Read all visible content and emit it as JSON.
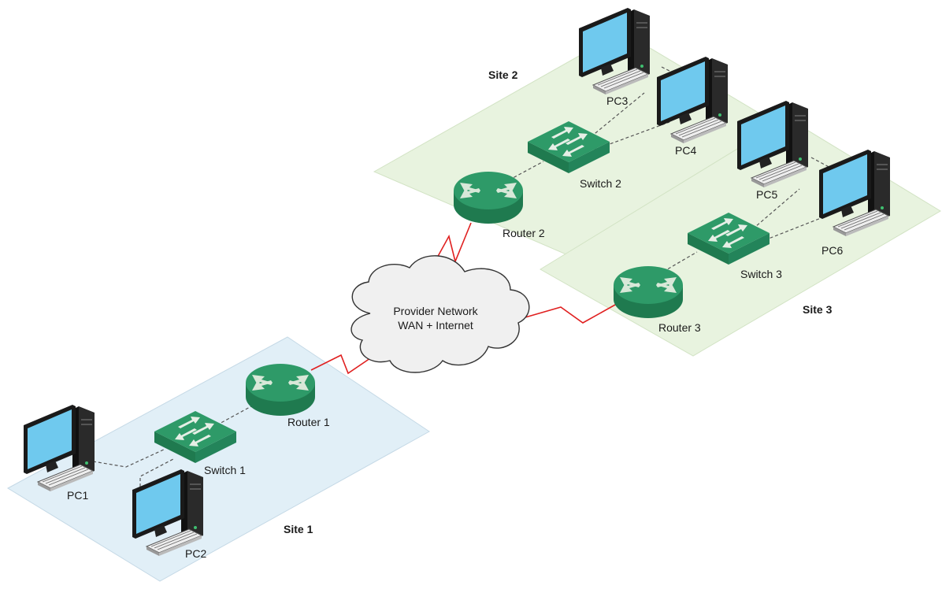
{
  "sites": [
    {
      "id": "site1",
      "label": "Site 1",
      "color": "#e1eff7"
    },
    {
      "id": "site2",
      "label": "Site 2",
      "color": "#e8f3df"
    },
    {
      "id": "site3",
      "label": "Site 3",
      "color": "#e8f3df"
    }
  ],
  "cloud": {
    "line1": "Provider Network",
    "line2": "WAN + Internet",
    "color": "#f0f0f0"
  },
  "routers": [
    {
      "id": "router1",
      "label": "Router 1"
    },
    {
      "id": "router2",
      "label": "Router 2"
    },
    {
      "id": "router3",
      "label": "Router 3"
    }
  ],
  "switches": [
    {
      "id": "switch1",
      "label": "Switch 1"
    },
    {
      "id": "switch2",
      "label": "Switch 2"
    },
    {
      "id": "switch3",
      "label": "Switch 3"
    }
  ],
  "pcs": [
    {
      "id": "pc1",
      "label": "PC1"
    },
    {
      "id": "pc2",
      "label": "PC2"
    },
    {
      "id": "pc3",
      "label": "PC3"
    },
    {
      "id": "pc4",
      "label": "PC4"
    },
    {
      "id": "pc5",
      "label": "PC5"
    },
    {
      "id": "pc6",
      "label": "PC6"
    }
  ],
  "colors": {
    "device_green": "#2e9a68",
    "device_green_dark": "#1f7a4f",
    "wan_link": "#e02020",
    "lan_link": "#555555",
    "screen": "#6fc9ee"
  },
  "icons": [
    "router-icon",
    "switch-icon",
    "pc-icon",
    "cloud-icon"
  ]
}
